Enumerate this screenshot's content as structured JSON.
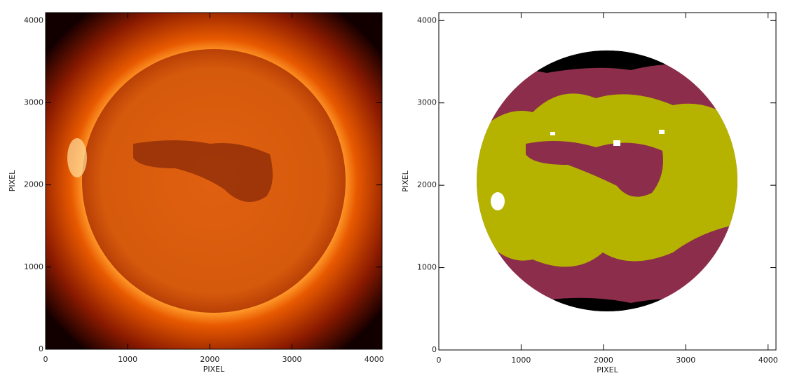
{
  "chart_data": [
    {
      "type": "image",
      "xlabel": "PIXEL",
      "ylabel": "PIXEL",
      "xlim": [
        0,
        4096
      ],
      "ylim": [
        0,
        4096
      ],
      "xticks": [
        0,
        1000,
        2000,
        3000,
        4000
      ],
      "yticks": [
        0,
        1000,
        2000,
        3000,
        4000
      ]
    },
    {
      "type": "image",
      "xlabel": "PIXEL",
      "ylabel": "PIXEL",
      "xlim": [
        0,
        4096
      ],
      "ylim": [
        0,
        4096
      ],
      "xticks": [
        0,
        1000,
        2000,
        3000,
        4000
      ],
      "yticks": [
        0,
        1000,
        2000,
        3000,
        4000
      ]
    }
  ]
}
